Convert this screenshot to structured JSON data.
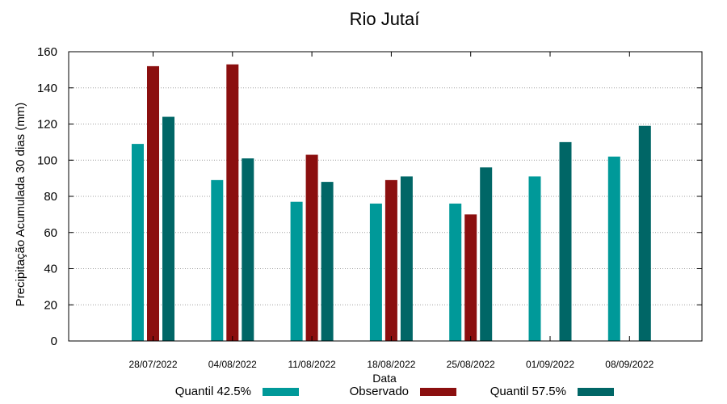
{
  "chart_data": {
    "type": "bar",
    "title": "Rio Jutaí",
    "xlabel": "Data",
    "ylabel": "Precipitação Acumulada 30 dias (mm)",
    "ylim": [
      0,
      160
    ],
    "yticks": [
      0,
      20,
      40,
      60,
      80,
      100,
      120,
      140,
      160
    ],
    "grid": true,
    "legend_position": "bottom",
    "categories": [
      "28/07/2022",
      "04/08/2022",
      "11/08/2022",
      "18/08/2022",
      "25/08/2022",
      "01/09/2022",
      "08/09/2022"
    ],
    "series": [
      {
        "name": "Quantil 42.5%",
        "color": "#009999",
        "values": [
          109,
          89,
          77,
          76,
          76,
          91,
          102
        ]
      },
      {
        "name": "Observado",
        "color": "#8b0f0f",
        "values": [
          152,
          153,
          103,
          89,
          70,
          null,
          null
        ]
      },
      {
        "name": "Quantil 57.5%",
        "color": "#006666",
        "values": [
          124,
          101,
          88,
          91,
          96,
          110,
          119
        ]
      }
    ]
  }
}
